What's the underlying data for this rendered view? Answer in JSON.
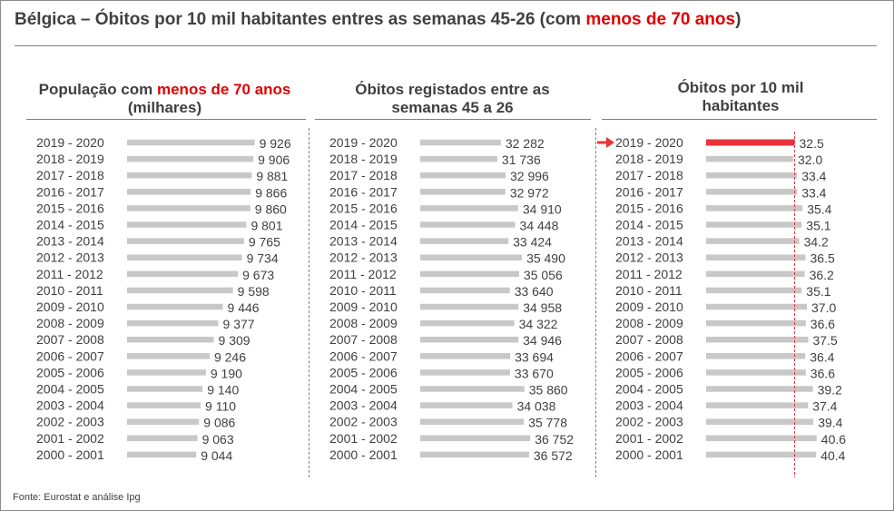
{
  "title": {
    "prefix": "Bélgica – Óbitos por 10 mil habitantes entres as semanas 45-26 (com ",
    "highlight": "menos de 70 anos",
    "suffix": ")"
  },
  "footnote": "Fonte: Eurostat e análise Ipg",
  "colors": {
    "bar": "#c8c8c8",
    "highlight": "#e8333a",
    "text": "#404040",
    "accent_red": "#e00000"
  },
  "chart_data": [
    {
      "type": "bar",
      "orientation": "horizontal",
      "title_parts": [
        "População com ",
        "menos de 70 anos",
        " (milhares)"
      ],
      "categories": [
        "2019 - 2020",
        "2018 - 2019",
        "2017 - 2018",
        "2016 - 2017",
        "2015 - 2016",
        "2014 - 2015",
        "2013 - 2014",
        "2012 - 2013",
        "2011 - 2012",
        "2010 - 2011",
        "2009 - 2010",
        "2008 - 2009",
        "2007 - 2008",
        "2006 - 2007",
        "2005 - 2006",
        "2004 - 2005",
        "2003 - 2004",
        "2002 - 2003",
        "2001 - 2002",
        "2000 - 2001"
      ],
      "values": [
        9926,
        9906,
        9881,
        9866,
        9860,
        9801,
        9765,
        9734,
        9673,
        9598,
        9446,
        9377,
        9309,
        9246,
        9190,
        9140,
        9110,
        9086,
        9063,
        9044
      ],
      "value_labels": [
        "9 926",
        "9 906",
        "9 881",
        "9 866",
        "9 860",
        "9 801",
        "9 765",
        "9 734",
        "9 673",
        "9 598",
        "9 446",
        "9 377",
        "9 309",
        "9 246",
        "9 190",
        "9 140",
        "9 110",
        "9 086",
        "9 063",
        "9 044"
      ],
      "xlim": [
        8000,
        10000
      ]
    },
    {
      "type": "bar",
      "orientation": "horizontal",
      "title": "Óbitos registados entre as semanas 45 a 26",
      "categories": [
        "2019 - 2020",
        "2018 - 2019",
        "2017 - 2018",
        "2016 - 2017",
        "2015 - 2016",
        "2014 - 2015",
        "2013 - 2014",
        "2012 - 2013",
        "2011 - 2012",
        "2010 - 2011",
        "2009 - 2010",
        "2008 - 2009",
        "2007 - 2008",
        "2006 - 2007",
        "2005 - 2006",
        "2004 - 2005",
        "2003 - 2004",
        "2002 - 2003",
        "2001 - 2002",
        "2000 - 2001"
      ],
      "values": [
        32282,
        31736,
        32996,
        32972,
        34910,
        34448,
        33424,
        35490,
        35056,
        33640,
        34958,
        34322,
        34946,
        33694,
        33670,
        35860,
        34038,
        35778,
        36752,
        36572
      ],
      "value_labels": [
        "32 282",
        "31 736",
        "32 996",
        "32 972",
        "34 910",
        "34 448",
        "33 424",
        "35 490",
        "35 056",
        "33 640",
        "34 958",
        "34 322",
        "34 946",
        "33 694",
        "33 670",
        "35 860",
        "34 038",
        "35 778",
        "36 752",
        "36 572"
      ],
      "xlim": [
        20000,
        37000
      ]
    },
    {
      "type": "bar",
      "orientation": "horizontal",
      "title": "Óbitos por 10 mil habitantes",
      "categories": [
        "2019 - 2020",
        "2018 - 2019",
        "2017 - 2018",
        "2016 - 2017",
        "2015 - 2016",
        "2014 - 2015",
        "2013 - 2014",
        "2012 - 2013",
        "2011 - 2012",
        "2010 - 2011",
        "2009 - 2010",
        "2008 - 2009",
        "2007 - 2008",
        "2006 - 2007",
        "2005 - 2006",
        "2004 - 2005",
        "2003 - 2004",
        "2002 - 2003",
        "2001 - 2002",
        "2000 - 2001"
      ],
      "values": [
        32.5,
        32.0,
        33.4,
        33.4,
        35.4,
        35.1,
        34.2,
        36.5,
        36.2,
        35.1,
        37.0,
        36.6,
        37.5,
        36.4,
        36.6,
        39.2,
        37.4,
        39.4,
        40.6,
        40.4
      ],
      "value_labels": [
        "32.5",
        "32.0",
        "33.4",
        "33.4",
        "35.4",
        "35.1",
        "34.2",
        "36.5",
        "36.2",
        "35.1",
        "37.0",
        "36.6",
        "37.5",
        "36.4",
        "36.6",
        "39.2",
        "37.4",
        "39.4",
        "40.6",
        "40.4"
      ],
      "highlight_index": 0,
      "reference_value": 32.5,
      "xlim": [
        0,
        45
      ]
    }
  ]
}
